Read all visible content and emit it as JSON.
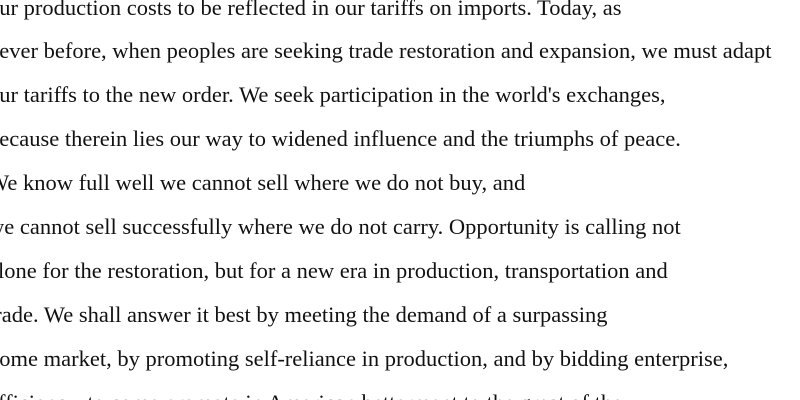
{
  "document": {
    "lines": [
      "our production costs to be reflected in our tariffs on imports. Today, as",
      "never before, when peoples are seeking trade restoration and expansion, we must adapt",
      "our tariffs to the new order. We seek participation in the world's exchanges,",
      "because therein lies our way to widened influence and the triumphs of peace.",
      "We know full well we cannot sell where we do not buy, and",
      "we cannot sell successfully where we do not carry. Opportunity is calling not",
      "alone for the restoration, but for a new era in production, transportation and",
      "trade. We shall answer it best by meeting the demand of a surpassing",
      "home market, by promoting self-reliance in production, and by bidding enterprise,",
      "efficiency, to come promote in American betterment to the great of the"
    ]
  }
}
